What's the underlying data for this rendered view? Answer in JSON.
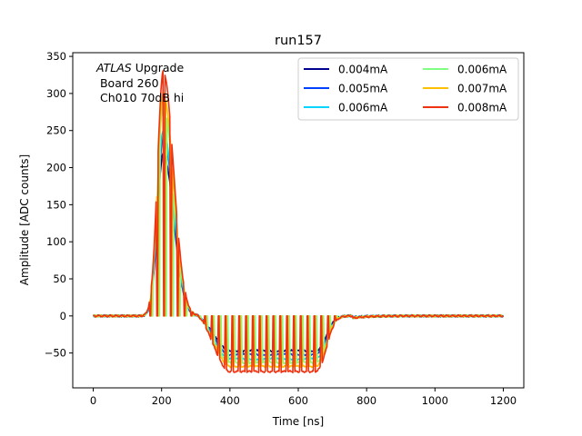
{
  "chart_data": {
    "type": "line",
    "title": "run157",
    "xlabel": "Time [ns]",
    "ylabel": "Amplitude [ADC counts]",
    "xlim": [
      -60,
      1260
    ],
    "ylim": [
      -97,
      355
    ],
    "xticks": [
      0,
      200,
      400,
      600,
      800,
      1000,
      1200
    ],
    "yticks": [
      -50,
      0,
      50,
      100,
      150,
      200,
      250,
      300,
      350
    ],
    "grid": false,
    "legend_position": "top-right",
    "legend_columns": 2,
    "annotation": {
      "italic": "ATLAS",
      "rest": " Upgrade",
      "line2": " Board 260",
      "line3": " Ch010 70dB hi"
    },
    "series": [
      {
        "name": "0.004mA",
        "color": "#00008f",
        "peak": 220,
        "undershoot": -47,
        "comb": false
      },
      {
        "name": "0.005mA",
        "color": "#0040ff",
        "peak": 240,
        "undershoot": -52,
        "comb": false
      },
      {
        "name": "0.006mA",
        "color": "#00d4ff",
        "peak": 250,
        "undershoot": -58,
        "comb": false
      },
      {
        "name": "0.006mA",
        "color": "#80ff80",
        "peak": 285,
        "undershoot": -63,
        "comb": true
      },
      {
        "name": "0.007mA",
        "color": "#ffc000",
        "peak": 300,
        "undershoot": -68,
        "comb": true
      },
      {
        "name": "0.008mA",
        "color": "#ee3311",
        "peak": 330,
        "undershoot": -75,
        "comb": true
      }
    ]
  }
}
